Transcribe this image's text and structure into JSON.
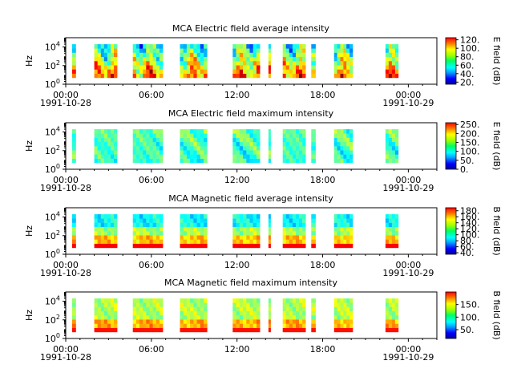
{
  "chart_data": [
    {
      "type": "heatmap",
      "title": "MCA  Electric field average intensity",
      "ylabel": "Hz",
      "yscale": "log",
      "ylim": [
        1,
        100000
      ],
      "ytick_labels": [
        "10^0",
        "10^2",
        "10^4"
      ],
      "x_range_hours": [
        0,
        26
      ],
      "xtick_labels": [
        "00:00",
        "06:00",
        "12:00",
        "18:00",
        "00:00"
      ],
      "date_labels": [
        "1991-10-28",
        "1991-10-29"
      ],
      "colorbar_label": "E field (dB)",
      "colorbar_range": [
        15,
        125
      ],
      "colorbar_ticks": [
        "20.",
        "40.",
        "60.",
        "80.",
        "100.",
        "120."
      ],
      "segments": [
        [
          0.45,
          0.7
        ],
        [
          2.0,
          3.6
        ],
        [
          4.7,
          6.8
        ],
        [
          8.0,
          9.9
        ],
        [
          11.7,
          13.6
        ],
        [
          14.2,
          14.35
        ],
        [
          15.2,
          16.8
        ],
        [
          17.2,
          17.5
        ],
        [
          18.8,
          20.1
        ],
        [
          22.4,
          23.3
        ]
      ],
      "pattern": "e_avg"
    },
    {
      "type": "heatmap",
      "title": "MCA  Electric field maximum intensity",
      "ylabel": "Hz",
      "yscale": "log",
      "ylim": [
        1,
        100000
      ],
      "ytick_labels": [
        "10^0",
        "10^2",
        "10^4"
      ],
      "x_range_hours": [
        0,
        26
      ],
      "xtick_labels": [
        "00:00",
        "06:00",
        "12:00",
        "18:00",
        "00:00"
      ],
      "date_labels": [
        "1991-10-28",
        "1991-10-29"
      ],
      "colorbar_label": "E field (dB)",
      "colorbar_range": [
        0,
        260
      ],
      "colorbar_ticks": [
        "0.",
        "50.",
        "100.",
        "150.",
        "200.",
        "250."
      ],
      "segments": [
        [
          0.45,
          0.7
        ],
        [
          2.0,
          3.6
        ],
        [
          4.7,
          6.8
        ],
        [
          8.0,
          9.9
        ],
        [
          11.7,
          13.6
        ],
        [
          14.2,
          14.35
        ],
        [
          15.2,
          16.8
        ],
        [
          17.2,
          17.5
        ],
        [
          18.8,
          20.1
        ],
        [
          22.4,
          23.3
        ]
      ],
      "pattern": "e_max"
    },
    {
      "type": "heatmap",
      "title": "MCA  Magnetic field average intensity",
      "ylabel": "Hz",
      "yscale": "log",
      "ylim": [
        1,
        100000
      ],
      "ytick_labels": [
        "10^0",
        "10^2",
        "10^4"
      ],
      "x_range_hours": [
        0,
        26
      ],
      "xtick_labels": [
        "00:00",
        "06:00",
        "12:00",
        "18:00",
        "00:00"
      ],
      "date_labels": [
        "1991-10-28",
        "1991-10-29"
      ],
      "colorbar_label": "B field (dB)",
      "colorbar_range": [
        35,
        190
      ],
      "colorbar_ticks": [
        "40.",
        "60.",
        "80.",
        "100.",
        "120.",
        "140.",
        "160.",
        "180."
      ],
      "segments": [
        [
          0.45,
          0.7
        ],
        [
          2.0,
          3.6
        ],
        [
          4.7,
          6.8
        ],
        [
          8.0,
          9.9
        ],
        [
          11.7,
          13.6
        ],
        [
          14.2,
          14.35
        ],
        [
          15.2,
          16.8
        ],
        [
          17.2,
          17.5
        ],
        [
          18.8,
          20.1
        ],
        [
          22.4,
          23.3
        ]
      ],
      "pattern": "b_avg"
    },
    {
      "type": "heatmap",
      "title": "MCA  Magnetic field maximum intensity",
      "ylabel": "Hz",
      "yscale": "log",
      "ylim": [
        1,
        100000
      ],
      "ytick_labels": [
        "10^0",
        "10^2",
        "10^4"
      ],
      "x_range_hours": [
        0,
        26
      ],
      "xtick_labels": [
        "00:00",
        "06:00",
        "12:00",
        "18:00",
        "00:00"
      ],
      "date_labels": [
        "1991-10-28",
        "1991-10-29"
      ],
      "colorbar_label": "B field (dB)",
      "colorbar_range": [
        15,
        200
      ],
      "colorbar_ticks": [
        "50.",
        "100.",
        "150."
      ],
      "segments": [
        [
          0.45,
          0.7
        ],
        [
          2.0,
          3.6
        ],
        [
          4.7,
          6.8
        ],
        [
          8.0,
          9.9
        ],
        [
          11.7,
          13.6
        ],
        [
          14.2,
          14.35
        ],
        [
          15.2,
          16.8
        ],
        [
          17.2,
          17.5
        ],
        [
          18.8,
          20.1
        ],
        [
          22.4,
          23.3
        ]
      ],
      "pattern": "b_max"
    }
  ]
}
